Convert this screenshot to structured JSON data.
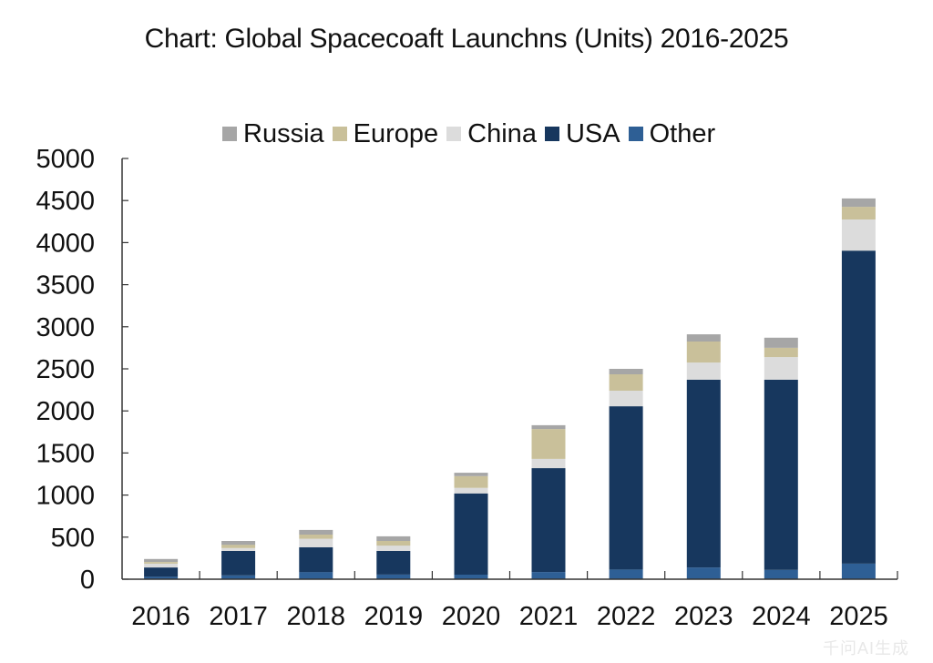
{
  "chart_data": {
    "type": "bar",
    "stacked": true,
    "title": "Chart: Global Spacecoaft Launchns (Units) 2016-2025",
    "xlabel": "",
    "ylabel": "",
    "ylim": [
      0,
      5000
    ],
    "yticks": [
      0,
      500,
      1000,
      1500,
      2000,
      2500,
      3000,
      3500,
      4000,
      4500,
      5000
    ],
    "grid": false,
    "legend_position": "top",
    "categories": [
      "2016",
      "2017",
      "2018",
      "2019",
      "2020",
      "2021",
      "2022",
      "2023",
      "2024",
      "2025"
    ],
    "series": [
      {
        "name": "Other",
        "color": "#2e5f95",
        "values": [
          30,
          45,
          85,
          55,
          55,
          85,
          115,
          140,
          110,
          185
        ]
      },
      {
        "name": "USA",
        "color": "#17375e",
        "values": [
          110,
          290,
          295,
          280,
          965,
          1235,
          1940,
          2230,
          2260,
          3720
        ]
      },
      {
        "name": "China",
        "color": "#dcdcdc",
        "values": [
          45,
          35,
          100,
          65,
          65,
          110,
          185,
          205,
          270,
          370
        ]
      },
      {
        "name": "Europe",
        "color": "#c9c09a",
        "values": [
          20,
          40,
          50,
          55,
          140,
          355,
          195,
          250,
          110,
          150
        ]
      },
      {
        "name": "Russia",
        "color": "#a6a6a6",
        "values": [
          35,
          45,
          55,
          55,
          40,
          45,
          65,
          85,
          120,
          100
        ]
      }
    ],
    "legend_order": [
      "Russia",
      "Europe",
      "China",
      "USA",
      "Other"
    ]
  },
  "watermark": "千问AI生成"
}
